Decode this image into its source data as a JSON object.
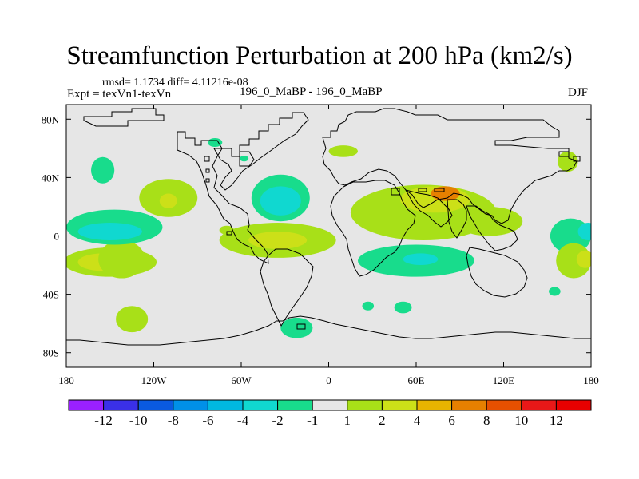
{
  "header": {
    "title": "Streamfunction Perturbation at 200 hPa (km2/s)",
    "stats": "rmsd= 1.1734 diff= 4.11216e-08",
    "experiment": "Expt = texVn1-texVn",
    "cases": "196_0_MaBP - 196_0_MaBP",
    "season": "DJF"
  },
  "chart_data": {
    "type": "heatmap",
    "title": "Streamfunction Perturbation at 200 hPa (km2/s)",
    "xlabel": "",
    "ylabel": "",
    "xlim": [
      -180,
      180
    ],
    "ylim": [
      -90,
      90
    ],
    "x_ticks": [
      {
        "value": -180,
        "label": "180"
      },
      {
        "value": -120,
        "label": "120W"
      },
      {
        "value": -60,
        "label": "60W"
      },
      {
        "value": 0,
        "label": "0"
      },
      {
        "value": 60,
        "label": "60E"
      },
      {
        "value": 120,
        "label": "120E"
      },
      {
        "value": 180,
        "label": "180"
      }
    ],
    "y_ticks": [
      {
        "value": 80,
        "label": "80N"
      },
      {
        "value": 40,
        "label": "40N"
      },
      {
        "value": 0,
        "label": "0"
      },
      {
        "value": -40,
        "label": "40S"
      },
      {
        "value": -80,
        "label": "80S"
      }
    ],
    "background_color": "#e6e6e6",
    "colorbar": {
      "levels": [
        "-12",
        "-10",
        "-8",
        "-6",
        "-4",
        "-2",
        "-1",
        "1",
        "2",
        "4",
        "6",
        "8",
        "10",
        "12"
      ],
      "colors": [
        "#9a20ff",
        "#3a30e8",
        "#0a5ae0",
        "#0090e8",
        "#00b8e0",
        "#10d8d0",
        "#18dc8c",
        "#e6e6e6",
        "#a8e018",
        "#cce018",
        "#e8b400",
        "#e68000",
        "#e65000",
        "#e81818",
        "#e80000"
      ]
    },
    "anomalies": [
      {
        "name": "pos-a",
        "lon": -150,
        "lat": -18,
        "rlon": 32,
        "rlat": 10,
        "level": 1
      },
      {
        "name": "pos-a-core",
        "lon": -155,
        "lat": -18,
        "rlon": 17,
        "rlat": 6,
        "level": 2
      },
      {
        "name": "pos-a-east",
        "lon": -142,
        "lat": -16,
        "rlon": 16,
        "rlat": 13,
        "level": 1
      },
      {
        "name": "neg-a",
        "lon": -147,
        "lat": 6,
        "rlon": 33,
        "rlat": 12,
        "level": -1
      },
      {
        "name": "neg-a-core",
        "lon": -150,
        "lat": 3,
        "rlon": 22,
        "rlat": 6,
        "level": -2
      },
      {
        "name": "neg-b",
        "lon": -155,
        "lat": 45,
        "rlon": 8,
        "rlat": 9,
        "level": -1
      },
      {
        "name": "pos-b",
        "lon": -110,
        "lat": 26,
        "rlon": 20,
        "rlat": 13,
        "level": 1
      },
      {
        "name": "pos-b-core",
        "lon": -110,
        "lat": 24,
        "rlon": 6,
        "rlat": 5,
        "level": 2
      },
      {
        "name": "pos-c",
        "lon": -135,
        "lat": -57,
        "rlon": 11,
        "rlat": 9,
        "level": 1
      },
      {
        "name": "neg-c",
        "lon": -78,
        "lat": 64,
        "rlon": 5,
        "rlat": 3,
        "level": -1
      },
      {
        "name": "neg-d",
        "lon": -58,
        "lat": 53,
        "rlon": 3,
        "rlat": 2,
        "level": -1
      },
      {
        "name": "neg-e",
        "lon": -33,
        "lat": 26,
        "rlon": 20,
        "rlat": 16,
        "level": -1
      },
      {
        "name": "neg-e-core",
        "lon": -33,
        "lat": 24,
        "rlon": 14,
        "rlat": 10,
        "level": -2
      },
      {
        "name": "pos-d",
        "lon": -35,
        "lat": -3,
        "rlon": 40,
        "rlat": 12,
        "level": 1
      },
      {
        "name": "pos-d-core",
        "lon": -35,
        "lat": -3,
        "rlon": 20,
        "rlat": 6,
        "level": 2
      },
      {
        "name": "pos-d-west",
        "lon": -70,
        "lat": 4,
        "rlon": 5,
        "rlat": 3,
        "level": 1
      },
      {
        "name": "neg-f",
        "lon": -22,
        "lat": -63,
        "rlon": 11,
        "rlat": 7,
        "level": -1
      },
      {
        "name": "pos-e",
        "lon": 10,
        "lat": 58,
        "rlon": 10,
        "rlat": 4,
        "level": 1
      },
      {
        "name": "pos-f",
        "lon": 65,
        "lat": 16,
        "rlon": 50,
        "rlat": 19,
        "level": 1
      },
      {
        "name": "pos-f-core",
        "lon": 73,
        "lat": 25,
        "rlon": 24,
        "rlat": 9,
        "level": 2
      },
      {
        "name": "pos-f-core2",
        "lon": 80,
        "lat": 29,
        "rlon": 10,
        "rlat": 5,
        "level": 4
      },
      {
        "name": "pos-f-east",
        "lon": 110,
        "lat": 10,
        "rlon": 23,
        "rlat": 10,
        "level": 1
      },
      {
        "name": "neg-g",
        "lon": 60,
        "lat": -17,
        "rlon": 40,
        "rlat": 11,
        "level": -1
      },
      {
        "name": "neg-g-core",
        "lon": 63,
        "lat": -16,
        "rlon": 12,
        "rlat": 4,
        "level": -2
      },
      {
        "name": "neg-h",
        "lon": 27,
        "lat": -48,
        "rlon": 4,
        "rlat": 3,
        "level": -1
      },
      {
        "name": "neg-i",
        "lon": 51,
        "lat": -49,
        "rlon": 6,
        "rlat": 4,
        "level": -1
      },
      {
        "name": "neg-j",
        "lon": 166,
        "lat": 0,
        "rlon": 14,
        "rlat": 12,
        "level": -1
      },
      {
        "name": "neg-j-core",
        "lon": 178,
        "lat": 3,
        "rlon": 7,
        "rlat": 6,
        "level": -2
      },
      {
        "name": "pos-g",
        "lon": 168,
        "lat": -17,
        "rlon": 12,
        "rlat": 12,
        "level": 1
      },
      {
        "name": "pos-g-core",
        "lon": 176,
        "lat": -16,
        "rlon": 6,
        "rlat": 6,
        "level": 2
      },
      {
        "name": "pos-h",
        "lon": 164,
        "lat": 51,
        "rlon": 7,
        "rlat": 7,
        "level": 1
      },
      {
        "name": "neg-k",
        "lon": 155,
        "lat": -38,
        "rlon": 4,
        "rlat": 3,
        "level": -1
      }
    ]
  }
}
